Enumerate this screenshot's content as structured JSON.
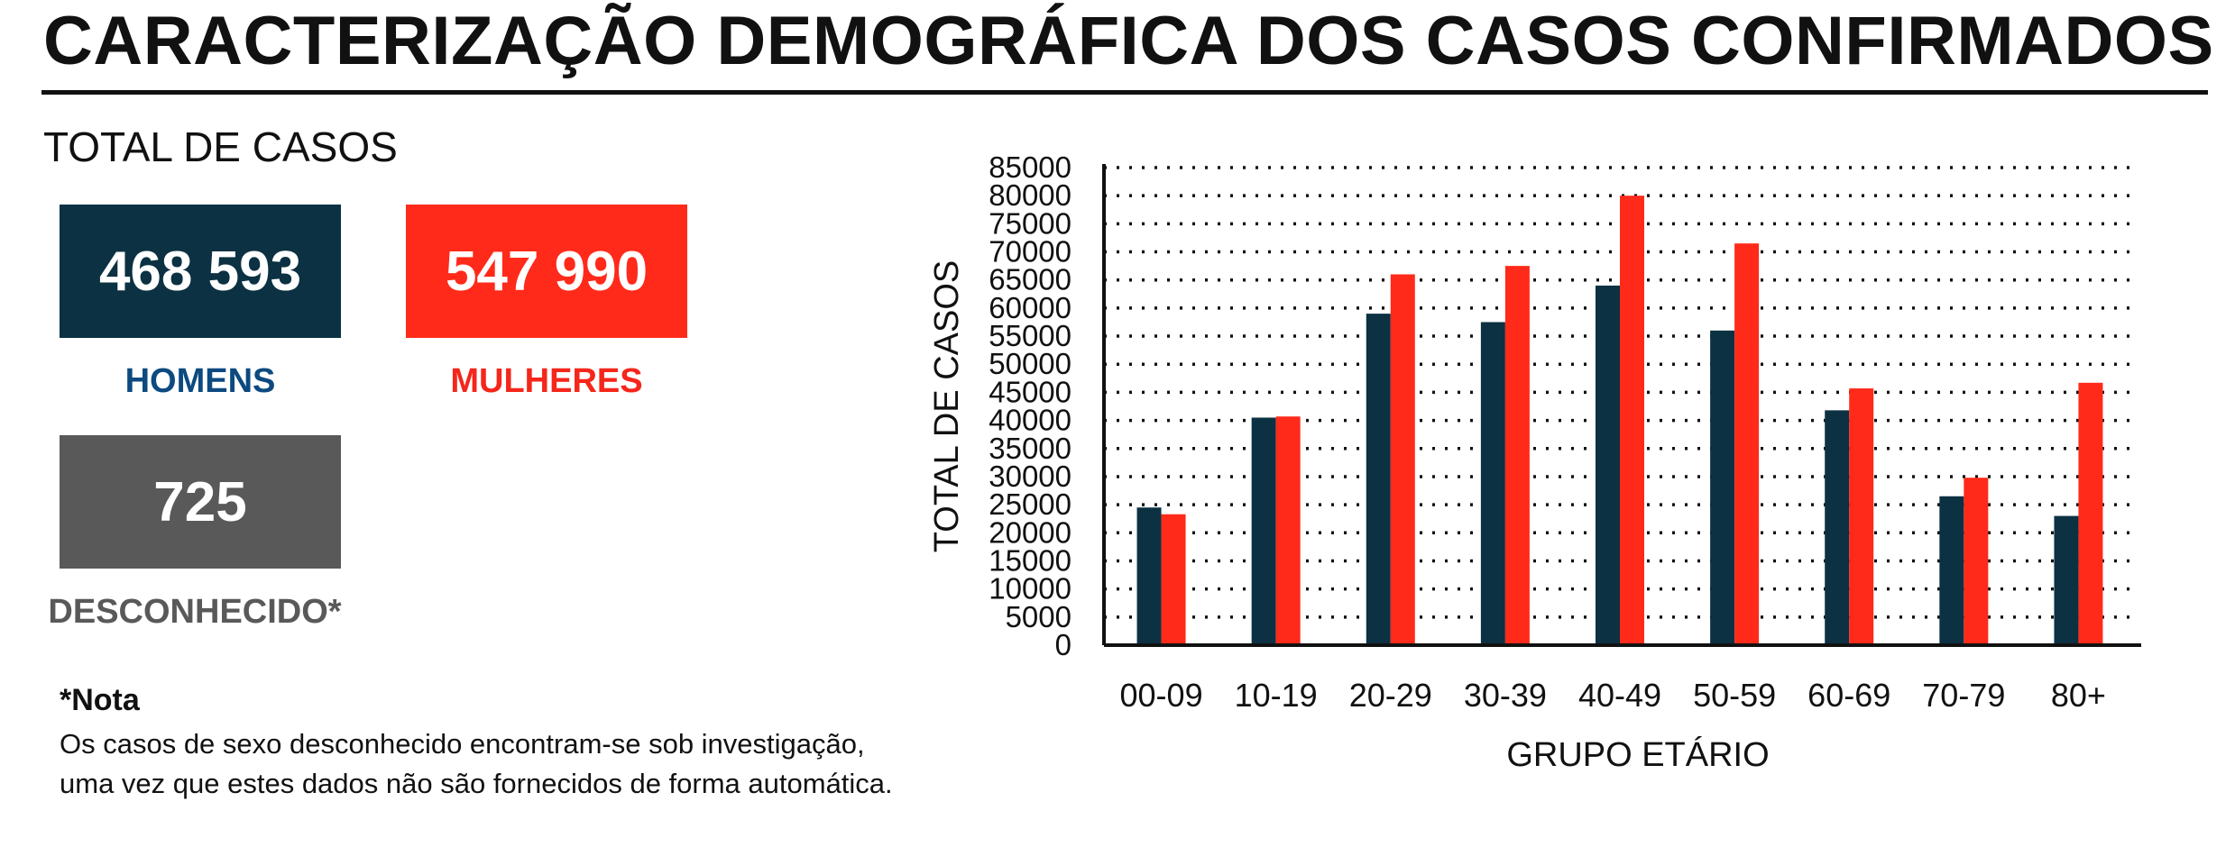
{
  "header": {
    "title": "CARACTERIZAÇÃO DEMOGRÁFICA DOS CASOS CONFIRMADOS",
    "total_heading": "TOTAL DE CASOS"
  },
  "stats": {
    "men": {
      "value": "468 593",
      "label": "HOMENS",
      "box_color": "#0b3142",
      "label_color": "#0c4a80"
    },
    "women": {
      "value": "547 990",
      "label": "MULHERES",
      "box_color": "#ff2a1a",
      "label_color": "#f5261b"
    },
    "unknown": {
      "value": "725",
      "label": "DESCONHECIDO*",
      "box_color": "#595959",
      "label_color": "#595959"
    }
  },
  "note": {
    "title": "*Nota",
    "line1": "Os casos de sexo desconhecido encontram-se sob investigação,",
    "line2": "uma vez que estes dados não são fornecidos de forma automática."
  },
  "chart_data": {
    "type": "bar",
    "categories": [
      "00-09",
      "10-19",
      "20-29",
      "30-39",
      "40-49",
      "50-59",
      "60-69",
      "70-79",
      "80+"
    ],
    "series": [
      {
        "color": "#0b3142",
        "values": [
          24500,
          40500,
          59000,
          57500,
          64000,
          56000,
          41800,
          26500,
          23000
        ]
      },
      {
        "color": "#ff2a1a",
        "values": [
          23300,
          40700,
          66000,
          67500,
          80000,
          71500,
          45700,
          29800,
          46700
        ]
      }
    ],
    "xlabel": "GRUPO ETÁRIO",
    "ylabel": "TOTAL DE CASOS",
    "ylim": [
      0,
      85000
    ],
    "yticks": [
      0,
      5000,
      10000,
      15000,
      20000,
      25000,
      30000,
      35000,
      40000,
      45000,
      50000,
      55000,
      60000,
      65000,
      70000,
      75000,
      80000,
      85000
    ],
    "grid": true
  }
}
